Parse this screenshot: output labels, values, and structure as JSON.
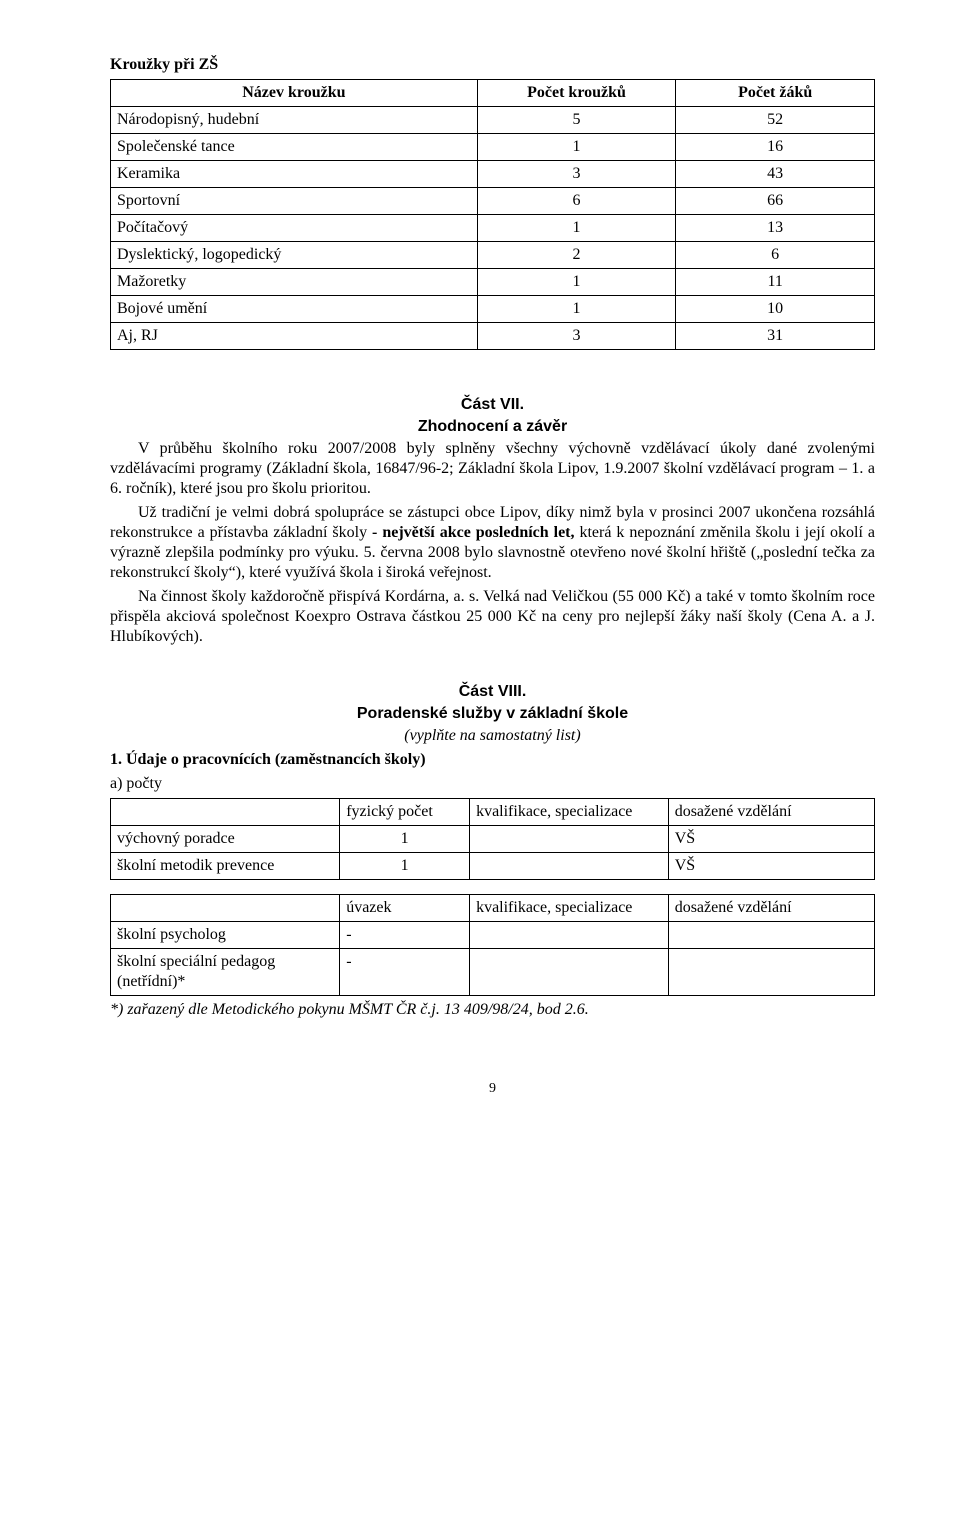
{
  "heading": "Kroužky při ZŠ",
  "table1": {
    "headers": [
      "Název kroužku",
      "Počet kroužků",
      "Počet žáků"
    ],
    "col_widths": [
      "48%",
      "26%",
      "26%"
    ],
    "rows": [
      [
        "Národopisný, hudební",
        "5",
        "52"
      ],
      [
        "Společenské tance",
        "1",
        "16"
      ],
      [
        "Keramika",
        "3",
        "43"
      ],
      [
        "Sportovní",
        "6",
        "66"
      ],
      [
        "Počítačový",
        "1",
        "13"
      ],
      [
        "Dyslektický, logopedický",
        "2",
        "6"
      ],
      [
        "Mažoretky",
        "1",
        "11"
      ],
      [
        "Bojové umění",
        "1",
        "10"
      ],
      [
        "Aj, RJ",
        "3",
        "31"
      ]
    ]
  },
  "part7": {
    "title": "Část VII.",
    "subtitle": "Zhodnocení a závěr",
    "p1": "V průběhu školního roku 2007/2008 byly splněny všechny výchovně vzdělávací úkoly dané zvolenými vzdělávacími programy (Základní škola, 16847/96-2; Základní škola Lipov, 1.9.2007 školní vzdělávací program – 1. a 6. ročník), které jsou pro školu prioritou.",
    "p2a": "Už tradiční je velmi dobrá spolupráce se zástupci obce Lipov, díky nimž byla v prosinci 2007 ukončena rozsáhlá rekonstrukce a  přístavba základní školy ",
    "p2b_bold": "- největší akce posledních let,",
    "p2c": " která  k nepoznání změnila školu i její okolí a výrazně zlepšila podmínky pro výuku. 5. června  2008 bylo slavnostně otevřeno nové školní hřiště („poslední tečka za rekonstrukcí školy“), které využívá škola i široká veřejnost.",
    "p3": "Na činnost školy každoročně přispívá Kordárna, a. s. Velká nad Veličkou (55 000 Kč) a také v tomto školním roce přispěla akciová společnost Koexpro Ostrava částkou 25 000 Kč na ceny pro nejlepší žáky naší školy (Cena A. a J. Hlubíkových)."
  },
  "part8": {
    "title": "Část VIII.",
    "subtitle": "Poradenské služby v základní škole",
    "note_italic": "(vyplňte na samostatný list)",
    "sub1_bold": "1. Údaje o pracovnících (zaměstnancích školy)",
    "sub1a": "a)       počty"
  },
  "table2": {
    "col_widths": [
      "30%",
      "17%",
      "26%",
      "27%"
    ],
    "headers": [
      "",
      "fyzický počet",
      "kvalifikace, specializace",
      "dosažené vzdělání"
    ],
    "rows": [
      [
        "výchovný poradce",
        "1",
        "",
        "VŠ"
      ],
      [
        "školní metodik prevence",
        "1",
        "",
        "VŠ"
      ]
    ]
  },
  "table3": {
    "col_widths": [
      "30%",
      "17%",
      "26%",
      "27%"
    ],
    "headers": [
      "",
      "úvazek",
      "kvalifikace, specializace",
      "dosažené vzdělání"
    ],
    "rows": [
      [
        "školní psycholog",
        "-",
        "",
        ""
      ],
      [
        "školní speciální pedagog (netřídní)*",
        "-",
        "",
        ""
      ]
    ]
  },
  "footnote_italic": "*)  zařazený dle Metodického pokynu MŠMT ČR č.j. 13 409/98/24, bod 2.6.",
  "page_number": "9"
}
